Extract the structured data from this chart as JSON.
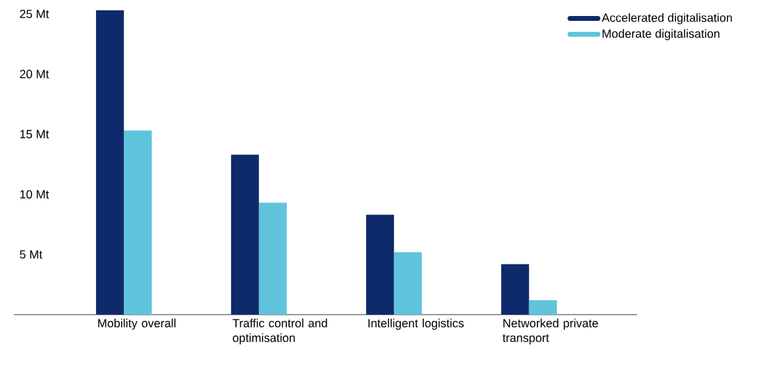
{
  "chart_data": {
    "type": "bar",
    "categories": [
      "Mobility overall",
      "Traffic control and optimisation",
      "Intelligent logistics",
      "Networked private transport"
    ],
    "series": [
      {
        "name": "Accelerated digitalisation",
        "color": "#0e2a6b",
        "values": [
          25.3,
          13.3,
          8.3,
          4.2
        ]
      },
      {
        "name": "Moderate digitalisation",
        "color": "#5fc4dc",
        "values": [
          15.3,
          9.3,
          5.2,
          1.2
        ]
      }
    ],
    "ylim": [
      0,
      25.3
    ],
    "yticks": [
      {
        "value": 5,
        "label": "5 Mt"
      },
      {
        "value": 10,
        "label": "10 Mt"
      },
      {
        "value": 15,
        "label": "15 Mt"
      },
      {
        "value": 20,
        "label": "20 Mt"
      },
      {
        "value": 25,
        "label": "25 Mt"
      }
    ],
    "legend": "top right"
  }
}
